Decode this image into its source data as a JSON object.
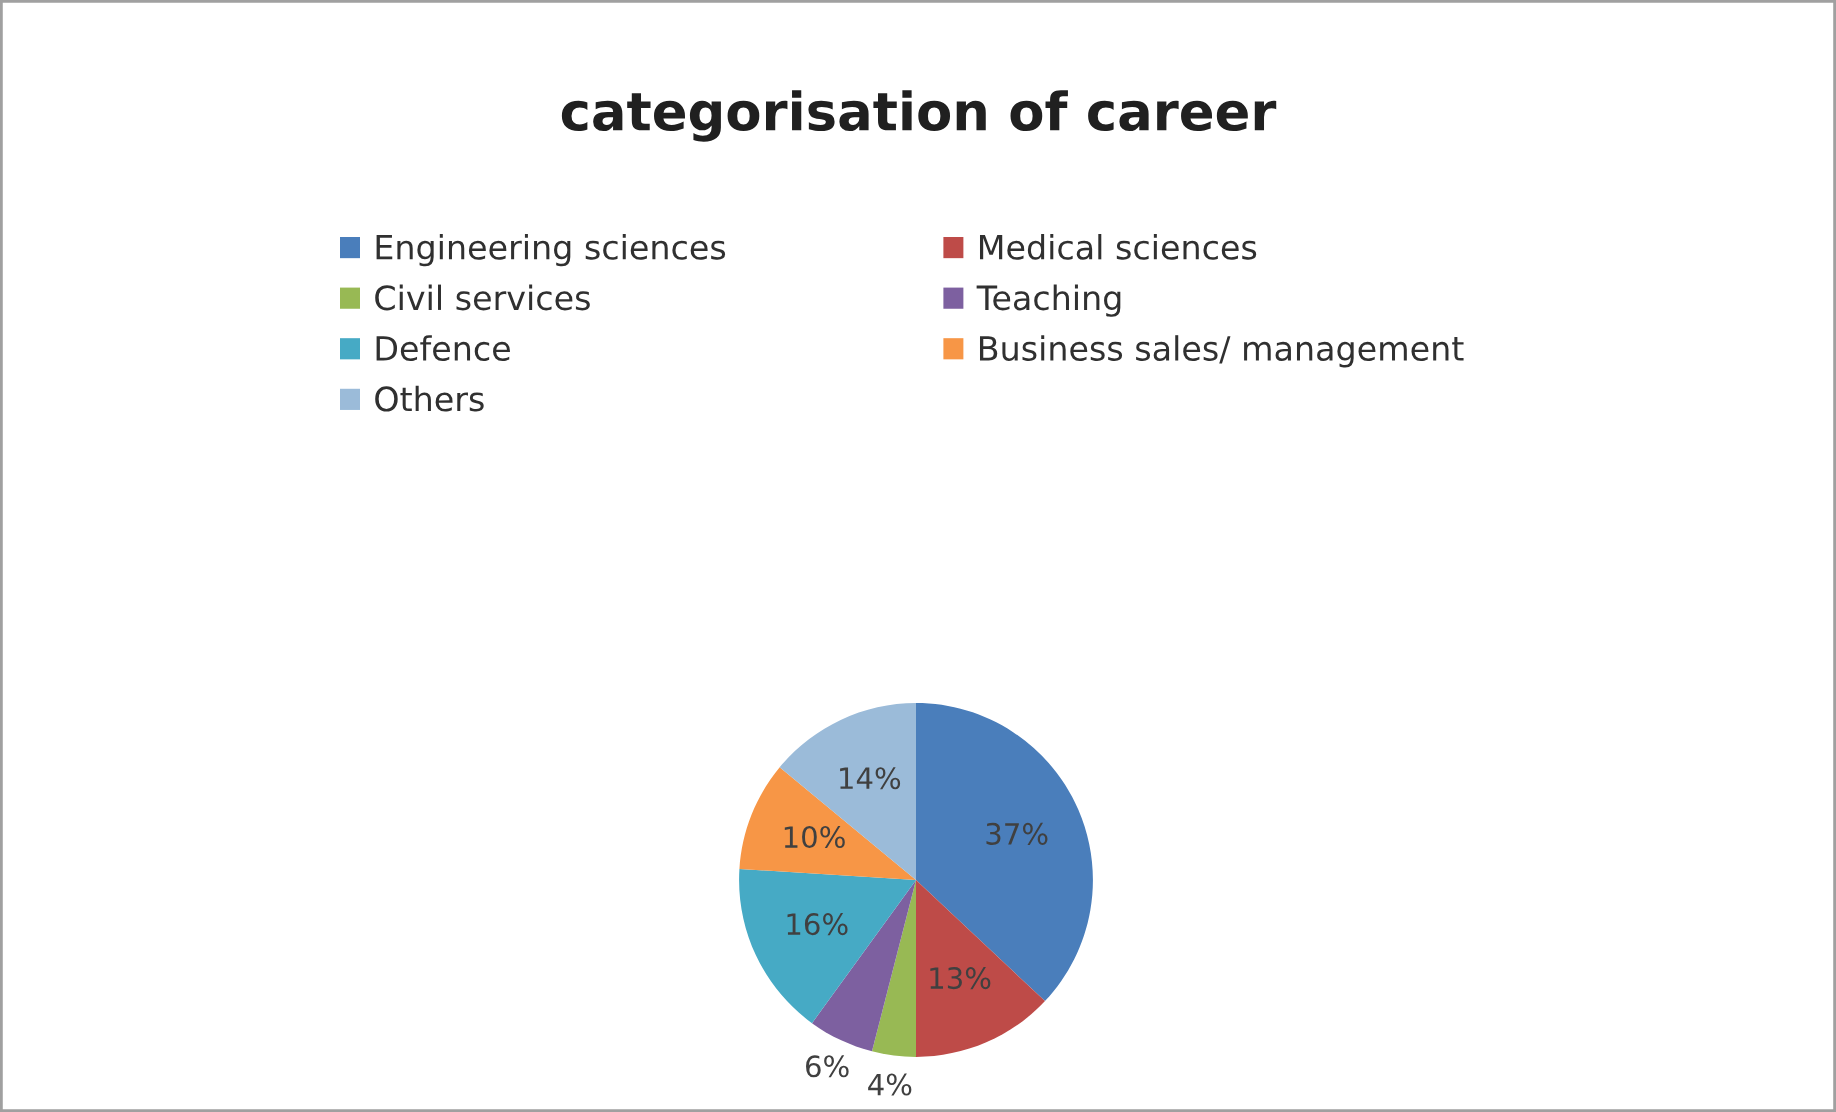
{
  "chart_data": {
    "type": "pie",
    "title": "categorisation of career",
    "categories": [
      "Engineering sciences",
      "Medical sciences",
      "Civil services",
      "Teaching",
      "Defence",
      "Business sales/ management",
      "Others"
    ],
    "values": [
      37,
      13,
      4,
      6,
      16,
      10,
      14
    ],
    "colors": [
      "#4a7ebb",
      "#be4b48",
      "#98b954",
      "#7d60a0",
      "#46aac5",
      "#f79646",
      "#9bbbd9"
    ],
    "value_labels": [
      "37%",
      "13%",
      "4%",
      "6%",
      "16%",
      "10%",
      "14%"
    ],
    "legend": "top"
  }
}
